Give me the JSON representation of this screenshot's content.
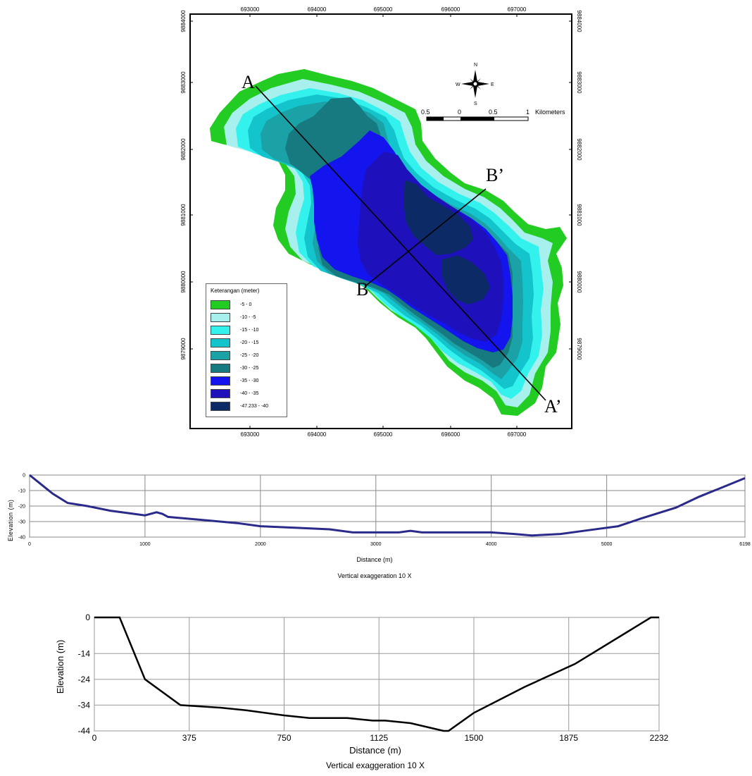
{
  "map": {
    "x_ticks": [
      "693000",
      "694000",
      "695000",
      "696000",
      "697000"
    ],
    "y_ticks": [
      "9884000",
      "9883000",
      "9882000",
      "9881000",
      "9880000",
      "9879000"
    ],
    "north_arrow": {
      "n": "N",
      "s": "S",
      "e": "E",
      "w": "W",
      "icon": "compass-rose-icon"
    },
    "scale_bar": {
      "labels": [
        "0.5",
        "0",
        "0.5",
        "1"
      ],
      "unit": "Kilometers"
    },
    "section_labels": {
      "a": "A",
      "a_prime": "A’",
      "b": "B",
      "b_prime": "B’"
    },
    "legend": {
      "title": "Keterangan (meter)",
      "classes": [
        {
          "label": "-5 - 0",
          "color": "#22cc22"
        },
        {
          "label": "-10 - -5",
          "color": "#a8f0ee"
        },
        {
          "label": "-15 - -10",
          "color": "#33f2ee"
        },
        {
          "label": "-20 - -15",
          "color": "#14c4cc"
        },
        {
          "label": "-25 - -20",
          "color": "#1aa2a6"
        },
        {
          "label": "-30 - -25",
          "color": "#167a80"
        },
        {
          "label": "-35 - -30",
          "color": "#1414ee"
        },
        {
          "label": "-40 - -35",
          "color": "#1e10bb"
        },
        {
          "label": "-47.233 - -40",
          "color": "#0c2a66"
        }
      ]
    }
  },
  "profile_1": {
    "ylabel": "Elevation (m)",
    "xlabel": "Distance (m)",
    "caption": "Vertical exaggeration 10 X",
    "x_ticks": [
      "0",
      "1000",
      "2000",
      "3000",
      "4000",
      "5000",
      "6198"
    ],
    "y_ticks": [
      "0",
      "-10",
      "-20",
      "-30",
      "-40"
    ],
    "line_color": "#2a2a8a",
    "chart_data": {
      "type": "line",
      "x": [
        0,
        100,
        200,
        330,
        500,
        700,
        900,
        1000,
        1100,
        1150,
        1200,
        1500,
        1800,
        2000,
        2300,
        2600,
        2800,
        3000,
        3200,
        3300,
        3400,
        3600,
        4000,
        4200,
        4350,
        4600,
        4800,
        5000,
        5100,
        5300,
        5600,
        5800,
        6000,
        6198
      ],
      "y": [
        0,
        -6,
        -12,
        -18,
        -20,
        -23,
        -25,
        -26,
        -24,
        -25,
        -27,
        -29,
        -31,
        -33,
        -34,
        -35,
        -37,
        -37,
        -37,
        -36,
        -37,
        -37,
        -37,
        -38,
        -39,
        -38,
        -36,
        -34,
        -33,
        -28,
        -21,
        -14,
        -8,
        -2
      ],
      "xlim": [
        0,
        6198
      ],
      "ylim": [
        -40,
        0
      ]
    }
  },
  "profile_2": {
    "ylabel": "Elevation (m)",
    "xlabel": "Distance (m)",
    "caption": "Vertical exaggeration 10 X",
    "x_ticks": [
      "0",
      "375",
      "750",
      "1125",
      "1500",
      "1875",
      "2232"
    ],
    "y_ticks": [
      "0",
      "-14",
      "-24",
      "-34",
      "-44"
    ],
    "line_color": "#000000",
    "chart_data": {
      "type": "line",
      "x": [
        0,
        100,
        200,
        340,
        500,
        600,
        750,
        850,
        1000,
        1100,
        1150,
        1250,
        1380,
        1400,
        1500,
        1700,
        1900,
        2100,
        2200,
        2232
      ],
      "y": [
        0,
        0,
        -24,
        -34,
        -35,
        -36,
        -38,
        -39,
        -39,
        -40,
        -40,
        -41,
        -44,
        -44,
        -37,
        -27,
        -18,
        -6,
        0,
        0
      ],
      "xlim": [
        0,
        2232
      ],
      "ylim": [
        -44,
        0
      ]
    }
  }
}
